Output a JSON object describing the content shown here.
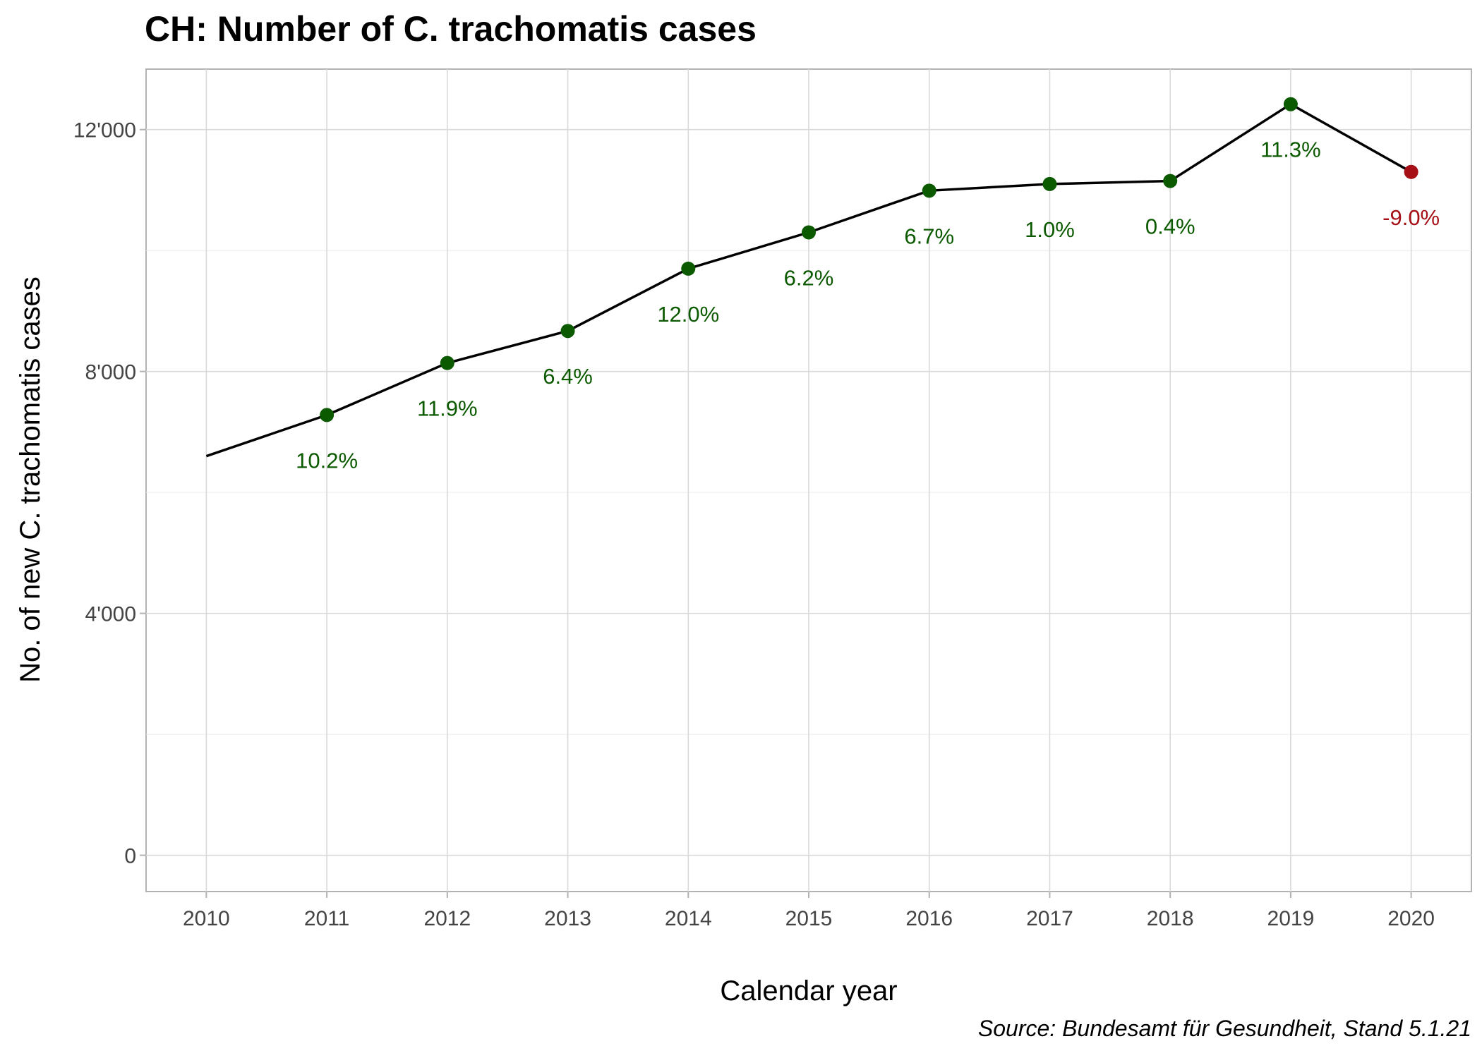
{
  "chart_data": {
    "type": "line",
    "title": "CH: Number of C. trachomatis cases",
    "xlabel": "Calendar year",
    "ylabel": "No. of new C. trachomatis cases",
    "caption": "Source: Bundesamt für Gesundheit, Stand 5.1.21",
    "x": [
      2010,
      2011,
      2012,
      2013,
      2014,
      2015,
      2016,
      2017,
      2018,
      2019,
      2020
    ],
    "x_tick_labels": [
      "2010",
      "2011",
      "2012",
      "2013",
      "2014",
      "2015",
      "2016",
      "2017",
      "2018",
      "2019",
      "2020"
    ],
    "y": [
      6600,
      7280,
      8140,
      8670,
      9700,
      10300,
      10990,
      11100,
      11150,
      12420,
      11300
    ],
    "change_labels": [
      "",
      "10.2%",
      "11.9%",
      "6.4%",
      "12.0%",
      "6.2%",
      "6.7%",
      "1.0%",
      "0.4%",
      "11.3%",
      "-9.0%"
    ],
    "y_ticks": [
      0,
      4000,
      8000,
      12000
    ],
    "y_tick_labels": [
      "0",
      "4'000",
      "8'000",
      "12'000"
    ],
    "ylim": [
      -600,
      13000
    ],
    "xlim": [
      2009.5,
      2020.5
    ],
    "grid": true,
    "colors": {
      "increase": "#0b5a00",
      "decrease": "#a50f15",
      "line": "#000000"
    }
  }
}
